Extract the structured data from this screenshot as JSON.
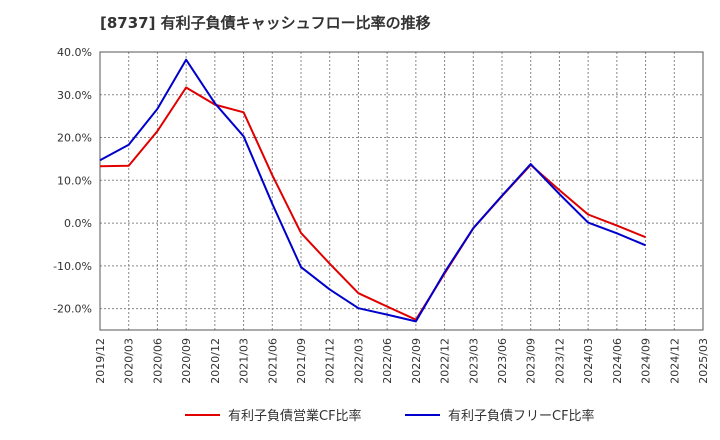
{
  "title": "[8737]  有利子負債キャッシュフロー比率の推移",
  "chart_data": {
    "type": "line",
    "x": [
      "2019/12",
      "2020/03",
      "2020/06",
      "2020/09",
      "2020/12",
      "2021/03",
      "2021/06",
      "2021/09",
      "2021/12",
      "2022/03",
      "2022/06",
      "2022/09",
      "2022/12",
      "2023/03",
      "2023/06",
      "2023/09",
      "2023/12",
      "2024/03",
      "2024/06",
      "2024/09",
      "2024/12",
      "2025/03"
    ],
    "ylim": [
      -25,
      40
    ],
    "yticks": [
      40,
      30,
      20,
      10,
      0,
      -10,
      -20
    ],
    "ytick_labels": [
      "40.0%",
      "30.0%",
      "20.0%",
      "10.0%",
      "0.0%",
      "-10.0%",
      "-20.0%"
    ],
    "grid": true,
    "legend_position": "bottom",
    "series": [
      {
        "name": "有利子負債営業CF比率",
        "color": "#e00000",
        "values": [
          13.3,
          13.4,
          21.5,
          31.7,
          27.7,
          25.9,
          11.2,
          -2.3,
          -9.5,
          -16.4,
          -19.5,
          -22.6,
          -11.8,
          -1.2,
          6.3,
          13.6,
          7.7,
          2.0,
          -0.6,
          -3.3,
          null,
          null
        ]
      },
      {
        "name": "有利子負債フリーCF比率",
        "color": "#0000cc",
        "values": [
          14.7,
          18.3,
          26.7,
          38.2,
          28.0,
          20.3,
          4.5,
          -10.3,
          -15.5,
          -19.9,
          -21.4,
          -23.0,
          -11.5,
          -1.2,
          6.4,
          13.8,
          6.8,
          0.1,
          -2.4,
          -5.2,
          null,
          null
        ]
      }
    ]
  }
}
